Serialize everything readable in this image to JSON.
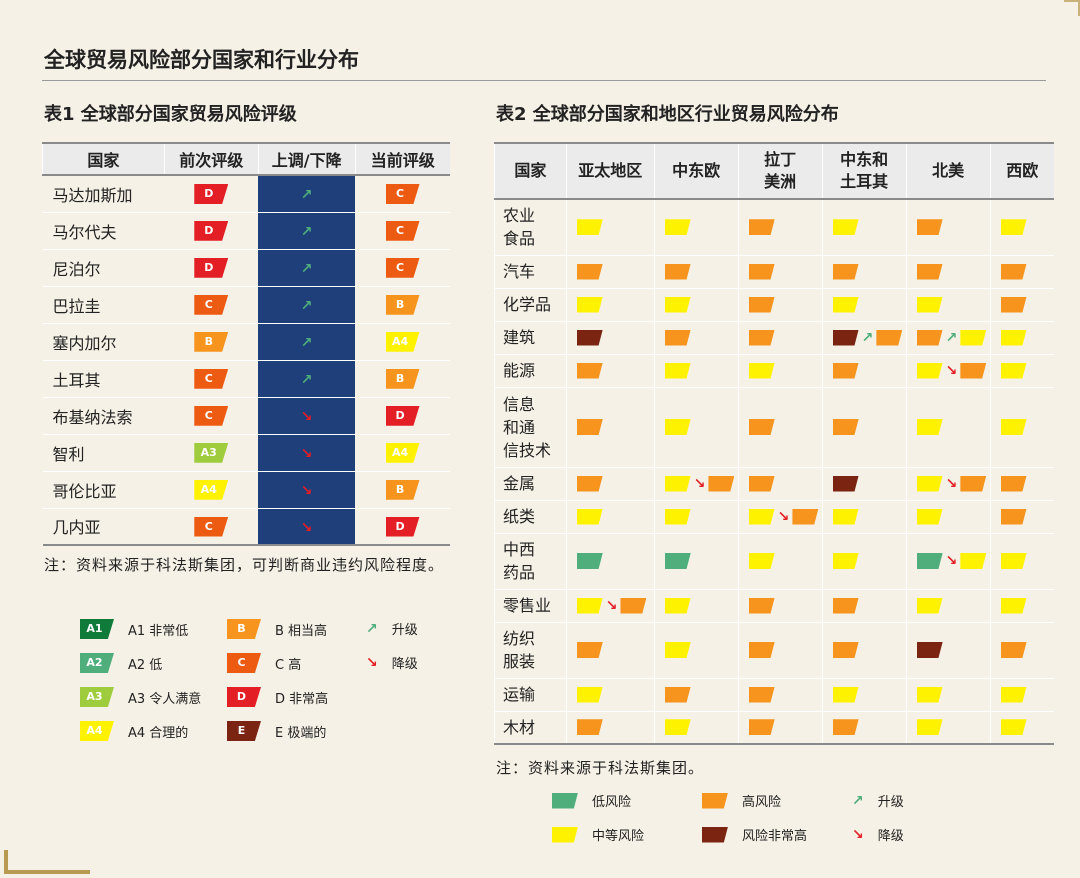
{
  "title": "全球贸易风险部分国家和行业分布",
  "colors": {
    "A1": "#0f7a3a",
    "A2": "#4fae7c",
    "A3": "#9fcc3c",
    "A4": "#fff200",
    "B": "#f7941d",
    "C": "#ed5a12",
    "D": "#e31e24",
    "E": "#7b2412",
    "low": "#4fae7c",
    "medium": "#fff200",
    "high": "#f7941d",
    "very_high": "#7b2412",
    "up_arrow": "#4fae7c",
    "down_arrow": "#e31e24",
    "navy": "#1e3f7a"
  },
  "table1": {
    "title": "表1  全球部分国家贸易风险评级",
    "headers": [
      "国家",
      "前次评级",
      "上调/下降",
      "当前评级"
    ],
    "rows": [
      {
        "country": "马达加斯加",
        "prev": "D",
        "dir": "up",
        "curr": "C"
      },
      {
        "country": "马尔代夫",
        "prev": "D",
        "dir": "up",
        "curr": "C"
      },
      {
        "country": "尼泊尔",
        "prev": "D",
        "dir": "up",
        "curr": "C"
      },
      {
        "country": "巴拉圭",
        "prev": "C",
        "dir": "up",
        "curr": "B"
      },
      {
        "country": "塞内加尔",
        "prev": "B",
        "dir": "up",
        "curr": "A4"
      },
      {
        "country": "土耳其",
        "prev": "C",
        "dir": "up",
        "curr": "B"
      },
      {
        "country": "布基纳法索",
        "prev": "C",
        "dir": "down",
        "curr": "D"
      },
      {
        "country": "智利",
        "prev": "A3",
        "dir": "down",
        "curr": "A4"
      },
      {
        "country": "哥伦比亚",
        "prev": "A4",
        "dir": "down",
        "curr": "B"
      },
      {
        "country": "几内亚",
        "prev": "C",
        "dir": "down",
        "curr": "D"
      }
    ],
    "note": "注：资料来源于科法斯集团，可判断商业违约风险程度。",
    "legend": [
      {
        "code": "A1",
        "text": "A1 非常低"
      },
      {
        "code": "A2",
        "text": "A2 低"
      },
      {
        "code": "A3",
        "text": "A3 令人满意"
      },
      {
        "code": "A4",
        "text": "A4 合理的"
      },
      {
        "code": "B",
        "text": "B 相当高"
      },
      {
        "code": "C",
        "text": "C 高"
      },
      {
        "code": "D",
        "text": "D 非常高"
      },
      {
        "code": "E",
        "text": "E 极端的"
      }
    ],
    "arrow_legend": [
      {
        "dir": "up",
        "text": "升级"
      },
      {
        "dir": "down",
        "text": "降级"
      }
    ]
  },
  "table2": {
    "title": "表2  全球部分国家和地区行业贸易风险分布",
    "headers": [
      "国家",
      "亚太地区",
      "中东欧",
      "拉丁\n美洲",
      "中东和\n土耳其",
      "北美",
      "西欧"
    ],
    "rows": [
      {
        "industry": "农业\n食品",
        "cells": [
          [
            "medium"
          ],
          [
            "medium"
          ],
          [
            "high"
          ],
          [
            "medium"
          ],
          [
            "high"
          ],
          [
            "medium"
          ]
        ]
      },
      {
        "industry": "汽车",
        "cells": [
          [
            "high"
          ],
          [
            "high"
          ],
          [
            "high"
          ],
          [
            "high"
          ],
          [
            "high"
          ],
          [
            "high"
          ]
        ]
      },
      {
        "industry": "化学品",
        "cells": [
          [
            "medium"
          ],
          [
            "medium"
          ],
          [
            "high"
          ],
          [
            "medium"
          ],
          [
            "medium"
          ],
          [
            "high"
          ]
        ]
      },
      {
        "industry": "建筑",
        "cells": [
          [
            "very_high"
          ],
          [
            "high"
          ],
          [
            "high"
          ],
          [
            "very_high",
            "up",
            "high"
          ],
          [
            "high",
            "up",
            "medium"
          ],
          [
            "medium"
          ]
        ]
      },
      {
        "industry": "能源",
        "cells": [
          [
            "high"
          ],
          [
            "medium"
          ],
          [
            "medium"
          ],
          [
            "high"
          ],
          [
            "medium",
            "down",
            "high"
          ],
          [
            "medium"
          ]
        ]
      },
      {
        "industry": "信息\n和通\n信技术",
        "cells": [
          [
            "high"
          ],
          [
            "medium"
          ],
          [
            "high"
          ],
          [
            "high"
          ],
          [
            "medium"
          ],
          [
            "medium"
          ]
        ]
      },
      {
        "industry": "金属",
        "cells": [
          [
            "high"
          ],
          [
            "medium",
            "down",
            "high"
          ],
          [
            "high"
          ],
          [
            "very_high"
          ],
          [
            "medium",
            "down",
            "high"
          ],
          [
            "high"
          ]
        ]
      },
      {
        "industry": "纸类",
        "cells": [
          [
            "medium"
          ],
          [
            "medium"
          ],
          [
            "medium",
            "down",
            "high"
          ],
          [
            "medium"
          ],
          [
            "medium"
          ],
          [
            "high"
          ]
        ]
      },
      {
        "industry": "中西\n药品",
        "cells": [
          [
            "low"
          ],
          [
            "low"
          ],
          [
            "medium"
          ],
          [
            "medium"
          ],
          [
            "low",
            "down",
            "medium"
          ],
          [
            "medium"
          ]
        ]
      },
      {
        "industry": "零售业",
        "cells": [
          [
            "medium",
            "down",
            "high"
          ],
          [
            "medium"
          ],
          [
            "high"
          ],
          [
            "high"
          ],
          [
            "medium"
          ],
          [
            "medium"
          ]
        ]
      },
      {
        "industry": "纺织\n服装",
        "cells": [
          [
            "high"
          ],
          [
            "medium"
          ],
          [
            "high"
          ],
          [
            "high"
          ],
          [
            "very_high"
          ],
          [
            "high"
          ]
        ]
      },
      {
        "industry": "运输",
        "cells": [
          [
            "medium"
          ],
          [
            "high"
          ],
          [
            "high"
          ],
          [
            "medium"
          ],
          [
            "medium"
          ],
          [
            "medium"
          ]
        ]
      },
      {
        "industry": "木材",
        "cells": [
          [
            "high"
          ],
          [
            "medium"
          ],
          [
            "high"
          ],
          [
            "high"
          ],
          [
            "medium"
          ],
          [
            "medium"
          ]
        ]
      }
    ],
    "note": "注：资料来源于科法斯集团。",
    "legend": [
      {
        "level": "low",
        "text": "低风险"
      },
      {
        "level": "high",
        "text": "高风险"
      },
      {
        "dir": "up",
        "text": "升级"
      },
      {
        "level": "medium",
        "text": "中等风险"
      },
      {
        "level": "very_high",
        "text": "风险非常高"
      },
      {
        "dir": "down",
        "text": "降级"
      }
    ]
  }
}
